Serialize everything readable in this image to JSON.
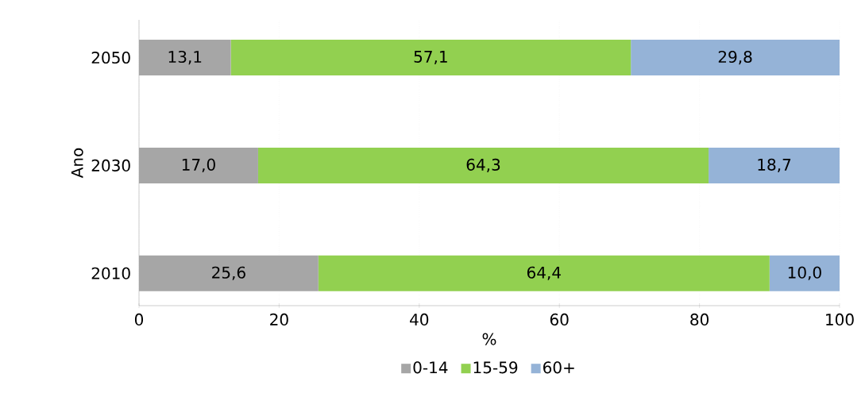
{
  "chart_data": {
    "type": "bar",
    "orientation": "horizontal",
    "stacked": true,
    "categories": [
      "2050",
      "2030",
      "2010"
    ],
    "series": [
      {
        "name": "0-14",
        "color": "#a6a6a6",
        "values": [
          13.1,
          17.0,
          25.6
        ],
        "value_labels": [
          "13,1",
          "17,0",
          "25,6"
        ]
      },
      {
        "name": "15-59",
        "color": "#92d050",
        "values": [
          57.1,
          64.3,
          64.4
        ],
        "value_labels": [
          "57,1",
          "64,3",
          "64,4"
        ]
      },
      {
        "name": "60+",
        "color": "#95b3d7",
        "values": [
          29.8,
          18.7,
          10.0
        ],
        "value_labels": [
          "29,8",
          "18,7",
          "10,0"
        ]
      }
    ],
    "xlim": [
      0,
      100
    ],
    "xticks": [
      0,
      20,
      40,
      60,
      80,
      100
    ],
    "xlabel": "%",
    "ylabel": "Ano",
    "grid": "x",
    "legend": "bottom"
  }
}
